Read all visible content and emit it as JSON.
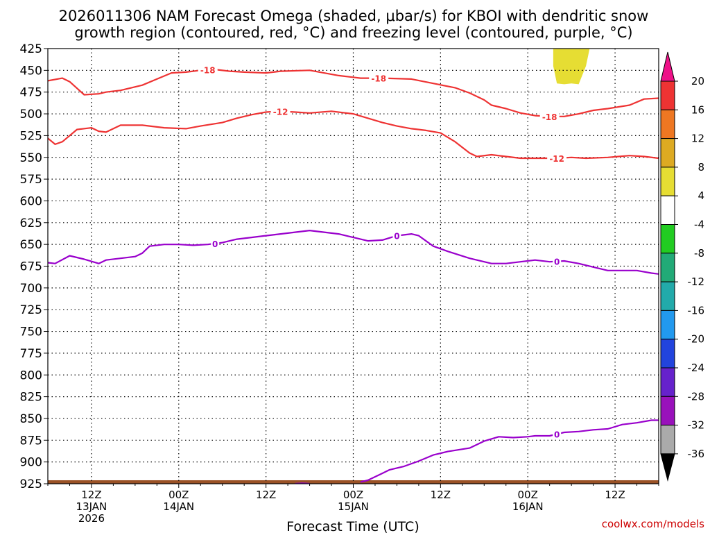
{
  "chart_data": {
    "type": "line",
    "title_line1": "2026011306 NAM Forecast Omega (shaded, μbar/s) for KBOI with dendritic snow",
    "title_line2": "growth region (contoured, red, °C) and freezing level (contoured, purple, °C)",
    "xlabel": "Forecast Time (UTC)",
    "credit": "coolwx.com/models",
    "ylim": [
      425,
      925
    ],
    "y_ticks": [
      425,
      450,
      475,
      500,
      525,
      550,
      575,
      600,
      625,
      650,
      675,
      700,
      725,
      750,
      775,
      800,
      825,
      850,
      875,
      900,
      925
    ],
    "xlim": [
      0,
      84
    ],
    "x_ticks": [
      {
        "hour": 6,
        "line1": "12Z",
        "line2": "13JAN",
        "line3": "2026"
      },
      {
        "hour": 18,
        "line1": "00Z",
        "line2": "14JAN",
        "line3": ""
      },
      {
        "hour": 30,
        "line1": "12Z",
        "line2": "",
        "line3": ""
      },
      {
        "hour": 42,
        "line1": "00Z",
        "line2": "15JAN",
        "line3": ""
      },
      {
        "hour": 54,
        "line1": "12Z",
        "line2": "",
        "line3": ""
      },
      {
        "hour": 66,
        "line1": "00Z",
        "line2": "16JAN",
        "line3": ""
      },
      {
        "hour": 78,
        "line1": "12Z",
        "line2": "",
        "line3": ""
      }
    ],
    "series": [
      {
        "name": "-18",
        "color": "#ee3333",
        "points": [
          [
            0,
            462
          ],
          [
            2,
            459
          ],
          [
            3,
            463
          ],
          [
            5,
            478
          ],
          [
            7,
            477
          ],
          [
            8,
            475
          ],
          [
            10,
            473
          ],
          [
            12,
            469
          ],
          [
            13,
            467
          ],
          [
            15,
            460
          ],
          [
            17,
            453
          ],
          [
            19,
            452
          ],
          [
            21,
            450
          ],
          [
            23,
            449
          ],
          [
            25,
            451
          ],
          [
            27,
            452
          ],
          [
            30,
            453
          ],
          [
            32,
            451
          ],
          [
            36,
            450
          ],
          [
            40,
            456
          ],
          [
            43,
            459
          ],
          [
            46,
            459
          ],
          [
            50,
            460
          ],
          [
            53,
            465
          ],
          [
            56,
            470
          ],
          [
            58,
            476
          ],
          [
            60,
            484
          ],
          [
            61,
            490
          ],
          [
            63,
            494
          ],
          [
            65,
            499
          ],
          [
            67,
            502
          ],
          [
            69,
            503
          ],
          [
            71,
            503
          ],
          [
            73,
            500
          ],
          [
            75,
            496
          ],
          [
            77,
            494
          ],
          [
            80,
            490
          ],
          [
            82,
            483
          ],
          [
            84,
            482
          ]
        ],
        "labels": [
          {
            "x": 22,
            "text": "-18"
          },
          {
            "x": 45.5,
            "text": "-18"
          },
          {
            "x": 69,
            "text": "-18"
          }
        ]
      },
      {
        "name": "-12",
        "color": "#ee3333",
        "points": [
          [
            0,
            528
          ],
          [
            1,
            535
          ],
          [
            2,
            532
          ],
          [
            4,
            518
          ],
          [
            6,
            516
          ],
          [
            7,
            520
          ],
          [
            8,
            521
          ],
          [
            9,
            517
          ],
          [
            10,
            513
          ],
          [
            13,
            513
          ],
          [
            16,
            516
          ],
          [
            19,
            517
          ],
          [
            21,
            514
          ],
          [
            24,
            510
          ],
          [
            26,
            505
          ],
          [
            28,
            501
          ],
          [
            30,
            498
          ],
          [
            32,
            497
          ],
          [
            34,
            498
          ],
          [
            36,
            499
          ],
          [
            39,
            497
          ],
          [
            42,
            500
          ],
          [
            44,
            505
          ],
          [
            46,
            510
          ],
          [
            48,
            514
          ],
          [
            50,
            517
          ],
          [
            52,
            519
          ],
          [
            54,
            522
          ],
          [
            56,
            532
          ],
          [
            58,
            545
          ],
          [
            59,
            549
          ],
          [
            61,
            547
          ],
          [
            63,
            549
          ],
          [
            65,
            551
          ],
          [
            67,
            551
          ],
          [
            70,
            551
          ],
          [
            72,
            550
          ],
          [
            74,
            551
          ],
          [
            77,
            550
          ],
          [
            80,
            548
          ],
          [
            82,
            549
          ],
          [
            84,
            551
          ]
        ],
        "labels": [
          {
            "x": 32,
            "text": "-12"
          },
          {
            "x": 70,
            "text": "-12"
          }
        ]
      },
      {
        "name": "0 (upper)",
        "color": "#9900cc",
        "points": [
          [
            0,
            671
          ],
          [
            1,
            672
          ],
          [
            3,
            663
          ],
          [
            5,
            667
          ],
          [
            7,
            672
          ],
          [
            8,
            668
          ],
          [
            10,
            666
          ],
          [
            12,
            664
          ],
          [
            13,
            660
          ],
          [
            14,
            652
          ],
          [
            16,
            650
          ],
          [
            18,
            650
          ],
          [
            20,
            651
          ],
          [
            22,
            650
          ],
          [
            24,
            648
          ],
          [
            26,
            644
          ],
          [
            28,
            642
          ],
          [
            30,
            640
          ],
          [
            34,
            636
          ],
          [
            36,
            634
          ],
          [
            38,
            636
          ],
          [
            40,
            638
          ],
          [
            42,
            642
          ],
          [
            44,
            646
          ],
          [
            46,
            645
          ],
          [
            48,
            640
          ],
          [
            50,
            638
          ],
          [
            51,
            640
          ],
          [
            53,
            652
          ],
          [
            55,
            658
          ],
          [
            58,
            666
          ],
          [
            61,
            672
          ],
          [
            63,
            672
          ],
          [
            65,
            670
          ],
          [
            67,
            668
          ],
          [
            69,
            670
          ],
          [
            71,
            669
          ],
          [
            73,
            672
          ],
          [
            75,
            676
          ],
          [
            77,
            680
          ],
          [
            79,
            680
          ],
          [
            81,
            680
          ],
          [
            83,
            683
          ],
          [
            84,
            684
          ]
        ],
        "labels": [
          {
            "x": 23,
            "text": "0"
          },
          {
            "x": 48,
            "text": "0"
          },
          {
            "x": 70,
            "text": "0"
          }
        ]
      },
      {
        "name": "0 (lower)",
        "color": "#9900cc",
        "points": [
          [
            43,
            923
          ],
          [
            44,
            921
          ],
          [
            46,
            913
          ],
          [
            47,
            909
          ],
          [
            48,
            907
          ],
          [
            49,
            905
          ],
          [
            51,
            899
          ],
          [
            53,
            892
          ],
          [
            55,
            888
          ],
          [
            58,
            884
          ],
          [
            60,
            876
          ],
          [
            62,
            871
          ],
          [
            64,
            872
          ],
          [
            66,
            871
          ],
          [
            67,
            870
          ],
          [
            69,
            870
          ],
          [
            71,
            866
          ],
          [
            73,
            865
          ],
          [
            75,
            863
          ],
          [
            77,
            862
          ],
          [
            79,
            857
          ],
          [
            81,
            855
          ],
          [
            83,
            852
          ],
          [
            84,
            852
          ]
        ],
        "labels": [
          {
            "x": 70,
            "text": "0"
          }
        ]
      },
      {
        "name": "0 (surface)",
        "color": "#9900cc",
        "points": [
          [
            34,
            925
          ],
          [
            35,
            924.5
          ],
          [
            36,
            925
          ]
        ],
        "labels": []
      }
    ],
    "omega_shading": [
      {
        "name": "4 to 8",
        "color": "#e6dd33",
        "polygon": [
          [
            69.5,
            425
          ],
          [
            74.5,
            425
          ],
          [
            74,
            445
          ],
          [
            73,
            466
          ],
          [
            72,
            465
          ],
          [
            71,
            466
          ],
          [
            70,
            465
          ],
          [
            69.5,
            445
          ]
        ]
      }
    ],
    "surface_ground": {
      "color": "#9a5226",
      "top_p": 921
    },
    "colorbar": {
      "top_arrow_color": "#ee1188",
      "bottom_arrow_color": "#000000",
      "bins": [
        {
          "from": 16,
          "to": 20,
          "color": "#ee3333"
        },
        {
          "from": 12,
          "to": 16,
          "color": "#ee7722"
        },
        {
          "from": 8,
          "to": 12,
          "color": "#ddaa22"
        },
        {
          "from": 4,
          "to": 8,
          "color": "#e6dd33"
        },
        {
          "from": -4,
          "to": 4,
          "color": "#ffffff"
        },
        {
          "from": -8,
          "to": -4,
          "color": "#22cc22"
        },
        {
          "from": -12,
          "to": -8,
          "color": "#22aa77"
        },
        {
          "from": -16,
          "to": -12,
          "color": "#22aaaa"
        },
        {
          "from": -20,
          "to": -16,
          "color": "#2299ee"
        },
        {
          "from": -24,
          "to": -20,
          "color": "#2244dd"
        },
        {
          "from": -28,
          "to": -24,
          "color": "#6622cc"
        },
        {
          "from": -32,
          "to": -28,
          "color": "#9911bb"
        },
        {
          "from": -36,
          "to": -32,
          "color": "#aaaaaa"
        }
      ],
      "tick_labels": [
        "20",
        "16",
        "12",
        "8",
        "4",
        "-4",
        "-8",
        "-12",
        "-16",
        "-20",
        "-24",
        "-28",
        "-32",
        "-36"
      ]
    }
  }
}
